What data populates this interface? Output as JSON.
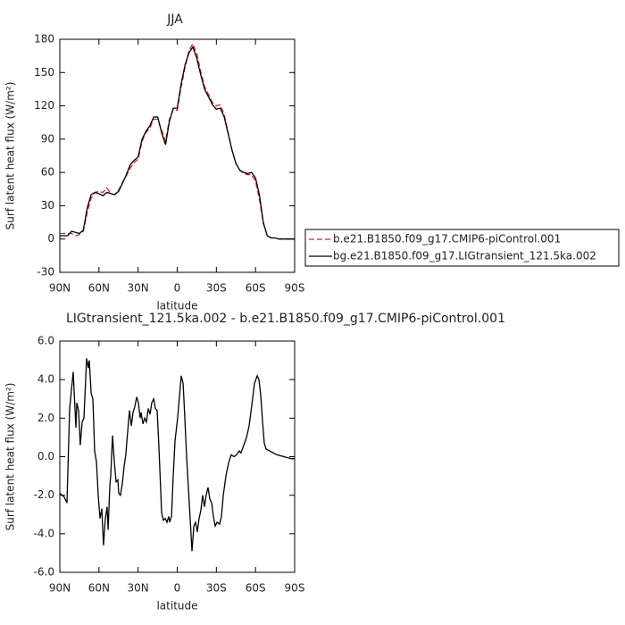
{
  "chart_data": [
    {
      "type": "line",
      "title": "JJA",
      "x_label": "latitude",
      "y_label": "Surf latent heat flux (W/m²)",
      "xlim": [
        90,
        -90
      ],
      "ylim": [
        -30,
        180
      ],
      "xticks": [
        {
          "value": 90,
          "label": "90N"
        },
        {
          "value": 60,
          "label": "60N"
        },
        {
          "value": 30,
          "label": "30N"
        },
        0,
        {
          "value": -30,
          "label": "30S"
        },
        {
          "value": -60,
          "label": "60S"
        },
        {
          "value": -90,
          "label": "90S"
        }
      ],
      "yticks": [
        -30,
        0,
        30,
        60,
        90,
        120,
        150,
        180
      ],
      "legend": "outside-right",
      "x": [
        90,
        87,
        84,
        81,
        78,
        75,
        72,
        69,
        66,
        63,
        60,
        57,
        54,
        51,
        48,
        45,
        42,
        39,
        36,
        33,
        30,
        27,
        24,
        21,
        18,
        15,
        12,
        9,
        6,
        3,
        0,
        -3,
        -6,
        -9,
        -12,
        -15,
        -18,
        -21,
        -24,
        -27,
        -30,
        -33,
        -36,
        -39,
        -42,
        -45,
        -48,
        -51,
        -54,
        -57,
        -60,
        -63,
        -66,
        -69,
        -72,
        -75,
        -78,
        -81,
        -84,
        -87,
        -90
      ],
      "series": [
        {
          "name": "b.e21.B1850.f09_g17.CMIP6-piControl.001",
          "color": "#e0201c",
          "dash": true,
          "values": [
            5,
            5,
            5,
            5,
            3,
            4,
            7,
            24,
            37,
            42,
            43,
            42,
            46,
            41,
            40,
            44,
            51,
            57,
            64,
            69,
            72,
            88,
            96,
            100,
            108,
            108,
            98,
            88,
            108,
            117,
            116,
            137,
            155,
            170,
            176,
            167,
            151,
            137,
            130,
            123,
            120,
            121,
            112,
            96,
            80,
            68,
            62,
            59,
            58,
            58,
            52,
            36,
            14,
            3,
            1,
            1,
            0,
            0,
            0,
            0,
            0
          ]
        },
        {
          "name": "bg.e21.B1850.f09_g17.LIGtransient_121.5ka.002",
          "color": "#000000",
          "dash": false,
          "values": [
            3,
            3,
            3,
            7,
            6,
            5,
            8,
            28,
            40,
            42,
            41,
            39,
            42,
            41,
            40,
            43,
            50,
            58,
            67,
            71,
            74,
            90,
            97,
            102,
            110,
            110,
            96,
            85,
            106,
            118,
            118,
            140,
            157,
            168,
            173,
            163,
            148,
            135,
            128,
            121,
            117,
            118,
            110,
            95,
            80,
            68,
            62,
            60,
            59,
            60,
            55,
            40,
            15,
            3,
            1,
            1,
            0,
            0,
            0,
            0,
            0
          ]
        }
      ]
    },
    {
      "type": "line",
      "title": "LIGtransient_121.5ka.002 - b.e21.B1850.f09_g17.CMIP6-piControl.001",
      "x_label": "latitude",
      "y_label": "Surf latent heat flux (W/m²)",
      "xlim": [
        90,
        -90
      ],
      "ylim": [
        -6,
        6
      ],
      "xticks": [
        {
          "value": 90,
          "label": "90N"
        },
        {
          "value": 60,
          "label": "60N"
        },
        {
          "value": 30,
          "label": "30N"
        },
        0,
        {
          "value": -30,
          "label": "30S"
        },
        {
          "value": -60,
          "label": "60S"
        },
        {
          "value": -90,
          "label": "90S"
        }
      ],
      "yticks": [
        {
          "value": -6,
          "label": "-6.0"
        },
        {
          "value": -4,
          "label": "-4.0"
        },
        {
          "value": -2,
          "label": "-2.0"
        },
        {
          "value": 0,
          "label": "0.0"
        },
        {
          "value": 2,
          "label": "2.0"
        },
        {
          "value": 4,
          "label": "4.0"
        },
        {
          "value": 6,
          "label": "6.0"
        }
      ],
      "x": [
        90,
        86.6,
        84.5,
        82.5,
        79.7,
        77.7,
        77.0,
        75.6,
        74.3,
        72.9,
        71.5,
        69.5,
        68.1,
        67.4,
        66.0,
        64.7,
        63.3,
        61.9,
        60.6,
        59.2,
        57.8,
        56.5,
        55.1,
        53.7,
        53.0,
        51.7,
        51.0,
        49.6,
        48.2,
        46.9,
        45.5,
        44.8,
        43.5,
        42.1,
        40.7,
        39.4,
        38.0,
        36.6,
        35.2,
        33.9,
        32.5,
        31.1,
        29.8,
        28.4,
        27.7,
        26.3,
        25.0,
        23.6,
        22.2,
        20.9,
        19.5,
        18.1,
        16.8,
        15.4,
        14.0,
        12.0,
        10.6,
        9.2,
        7.9,
        6.5,
        5.8,
        4.4,
        3.1,
        1.7,
        -0.3,
        -3.1,
        -4.5,
        -5.8,
        -7.2,
        -8.6,
        -9.9,
        -11.3,
        -12.7,
        -14.0,
        -15.4,
        -16.8,
        -18.1,
        -19.5,
        -20.9,
        -22.2,
        -23.6,
        -25.0,
        -26.4,
        -27.7,
        -29.1,
        -30.5,
        -32.5,
        -33.9,
        -35.3,
        -37.3,
        -39.4,
        -41.4,
        -43.5,
        -45.5,
        -47.6,
        -48.9,
        -51.0,
        -53.1,
        -55.1,
        -57.2,
        -59.2,
        -61.3,
        -62.6,
        -64.0,
        -65.4,
        -66.7,
        -68.1,
        -70.8,
        -76.3,
        -81.8,
        -87.3,
        -90
      ],
      "series": [
        {
          "color": "#000000",
          "dash": false,
          "values": [
            -1.9,
            -2.1,
            -2.4,
            2.5,
            4.4,
            1.5,
            2.8,
            2.4,
            0.6,
            1.8,
            2.0,
            5.1,
            4.6,
            5.0,
            3.3,
            3.0,
            0.3,
            -0.3,
            -2.0,
            -3.2,
            -2.7,
            -4.6,
            -3.2,
            -2.6,
            -3.8,
            -1.5,
            -1.0,
            1.1,
            -0.3,
            -1.3,
            -1.2,
            -1.9,
            -2.0,
            -1.4,
            -0.5,
            0.1,
            1.3,
            2.4,
            1.6,
            2.3,
            2.6,
            3.1,
            2.8,
            2.0,
            2.3,
            1.7,
            2.0,
            1.8,
            2.5,
            2.2,
            2.8,
            3.0,
            2.5,
            2.4,
            0.5,
            -2.9,
            -3.3,
            -3.2,
            -3.4,
            -3.1,
            -3.4,
            -3.1,
            -1.0,
            0.8,
            2.0,
            4.2,
            3.8,
            2.0,
            0.0,
            -1.7,
            -3.2,
            -4.9,
            -3.6,
            -3.4,
            -3.9,
            -3.2,
            -2.8,
            -2.0,
            -2.6,
            -2.0,
            -1.6,
            -2.2,
            -2.4,
            -3.1,
            -3.6,
            -3.4,
            -3.5,
            -3.1,
            -2.0,
            -1.0,
            -0.3,
            0.1,
            0.0,
            0.1,
            0.3,
            0.2,
            0.6,
            1.0,
            1.6,
            2.7,
            3.8,
            4.2,
            4.0,
            3.2,
            1.8,
            0.7,
            0.4,
            0.3,
            0.1,
            0.0,
            -0.1,
            -0.1
          ]
        }
      ]
    }
  ]
}
